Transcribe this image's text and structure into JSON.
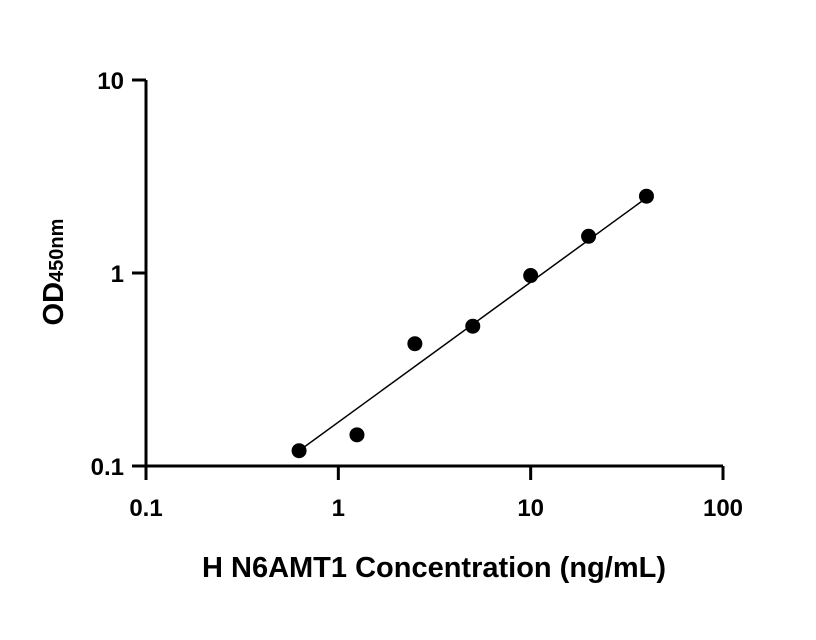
{
  "chart_data": {
    "type": "scatter",
    "title": "",
    "xlabel": "H N6AMT1 Concentration (ng/mL)",
    "ylabel_main": "OD",
    "ylabel_sub": "450nm",
    "x_scale": "log",
    "y_scale": "log",
    "xlim": [
      0.1,
      100
    ],
    "ylim": [
      0.1,
      10
    ],
    "x_ticks": [
      {
        "value": 0.1,
        "label": "0.1"
      },
      {
        "value": 1,
        "label": "1"
      },
      {
        "value": 10,
        "label": "10"
      },
      {
        "value": 100,
        "label": "100"
      }
    ],
    "y_ticks": [
      {
        "value": 0.1,
        "label": "0.1"
      },
      {
        "value": 1,
        "label": "1"
      },
      {
        "value": 10,
        "label": "10"
      }
    ],
    "grid": false,
    "legend": "none",
    "series": [
      {
        "x": [
          0.625,
          1.25,
          2.5,
          5,
          10,
          20,
          40
        ],
        "y": [
          0.12,
          0.145,
          0.43,
          0.53,
          0.97,
          1.55,
          2.5
        ]
      }
    ],
    "fit_line": {
      "x": [
        0.625,
        40
      ],
      "y": [
        0.12,
        2.45
      ]
    },
    "colors": {
      "marker": "#000000",
      "line": "#000000",
      "axis": "#000000"
    }
  }
}
